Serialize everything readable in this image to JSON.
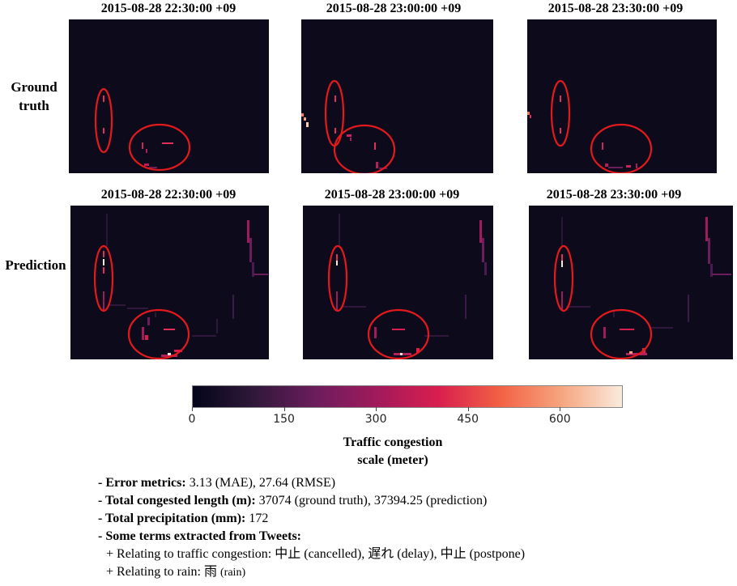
{
  "rows": [
    {
      "label_line1": "Ground",
      "label_line2": "truth"
    },
    {
      "label_line1": "Prediction",
      "label_line2": ""
    }
  ],
  "chart_data": {
    "type": "heatmap",
    "colorbar": {
      "label_line1": "Traffic congestion",
      "label_line2": "scale (meter)",
      "range": [
        0,
        700
      ],
      "ticks": [
        "0",
        "150",
        "300",
        "450",
        "600"
      ],
      "tick_values": [
        0,
        150,
        300,
        450,
        600
      ],
      "colors": [
        "#03051a",
        "#30183a",
        "#6b1d5c",
        "#a11a5b",
        "#d91e4f",
        "#f26044",
        "#f6a47e",
        "#faebdd"
      ]
    },
    "panels": [
      {
        "row": 0,
        "col": 0,
        "title": "2015-08-28 22:30:00 +09"
      },
      {
        "row": 0,
        "col": 1,
        "title": "2015-08-28 23:00:00 +09"
      },
      {
        "row": 0,
        "col": 2,
        "title": "2015-08-28 23:30:00 +09"
      },
      {
        "row": 1,
        "col": 0,
        "title": "2015-08-28 22:30:00 +09"
      },
      {
        "row": 1,
        "col": 1,
        "title": "2015-08-28 23:00:00 +09"
      },
      {
        "row": 1,
        "col": 2,
        "title": "2015-08-28 23:30:00 +09"
      }
    ]
  },
  "info": {
    "error_label": "- Error metrics:",
    "error_value": " 3.13 (MAE), 27.64 (RMSE)",
    "length_label": "- Total congested length (m):",
    "length_value": " 37074 (ground truth), 37394.25 (prediction)",
    "precip_label": "- Total precipitation (mm):",
    "precip_value": " 172",
    "terms_label": "- Some terms extracted from Tweets:",
    "traffic_line": "+ Relating to traffic congestion: 中止 (cancelled), 遅れ (delay), 中止 (postpone)",
    "rain_prefix": "+ Relating to rain: 雨 ",
    "rain_suffix": "(rain)"
  }
}
